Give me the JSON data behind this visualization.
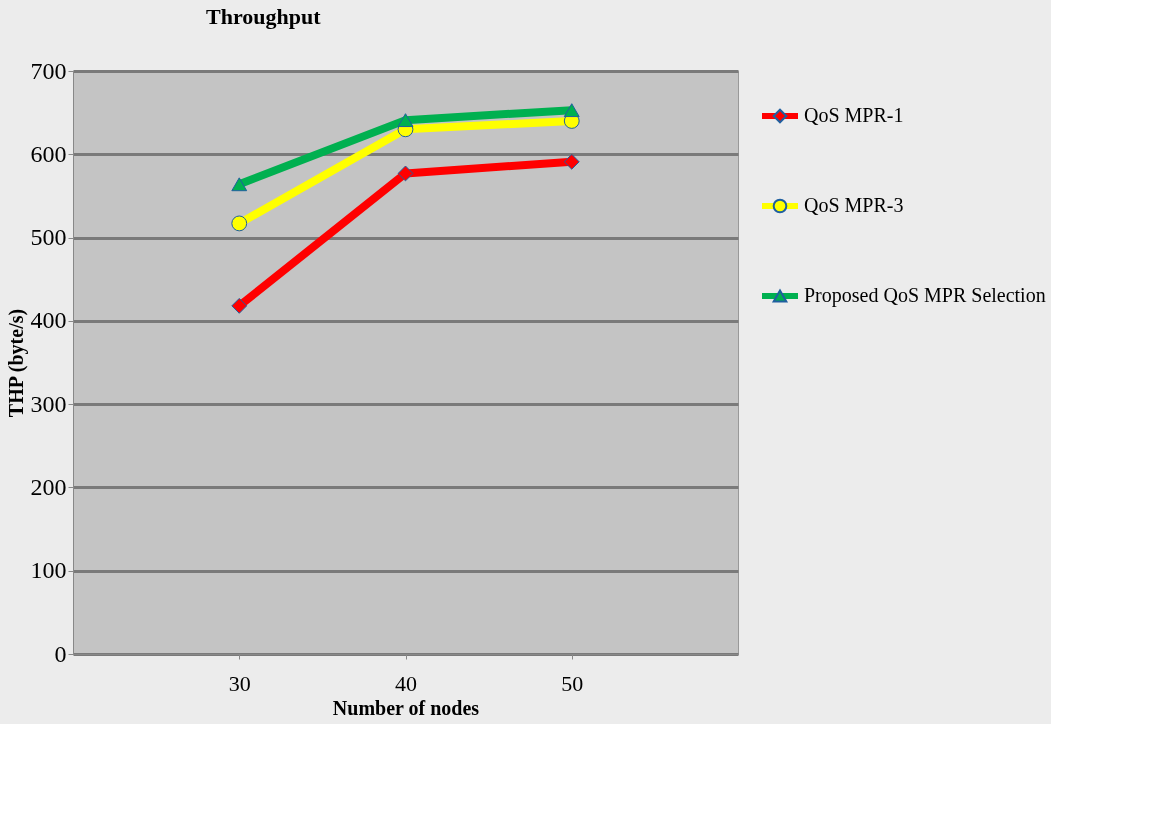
{
  "chart_data": {
    "type": "line",
    "title": "Throughput",
    "xlabel": "Number of nodes",
    "ylabel": "THP (byte/s)",
    "x": [
      30,
      40,
      50
    ],
    "xlim": [
      20,
      60
    ],
    "xticks": [
      30,
      40,
      50
    ],
    "ylim": [
      0,
      700
    ],
    "yticks": [
      0,
      100,
      200,
      300,
      400,
      500,
      600,
      700
    ],
    "grid": "y",
    "legend": "right",
    "line_style": "solid",
    "series": [
      {
        "name": "QoS MPR-1",
        "color": "#ff0000",
        "marker": "diamond",
        "values": [
          418,
          577,
          591
        ]
      },
      {
        "name": "QoS MPR-3",
        "color": "#ffff00",
        "marker": "circle",
        "values": [
          517,
          630,
          640
        ]
      },
      {
        "name": "Proposed QoS MPR Selection",
        "color": "#00b050",
        "marker": "triangle",
        "values": [
          564,
          641,
          653
        ]
      }
    ]
  }
}
